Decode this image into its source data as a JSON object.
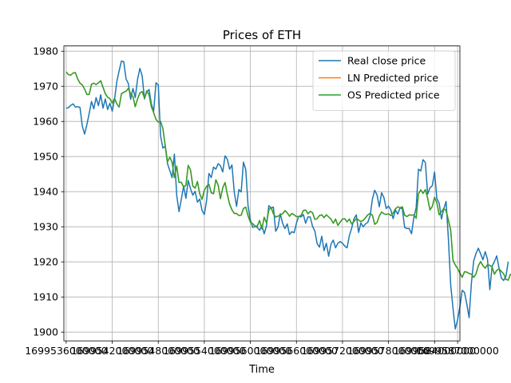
{
  "chart_data": {
    "type": "line",
    "title": "Prices of ETH",
    "xlabel": "Time",
    "ylabel": "",
    "grid": true,
    "legend_position": "top-right",
    "ylim": [
      1897.5,
      1981.5
    ],
    "yticks": [
      1900,
      1910,
      1920,
      1930,
      1940,
      1950,
      1960,
      1970,
      1980
    ],
    "xlim": [
      1699535700000,
      1699587300000
    ],
    "xticks": [
      1699536000000,
      1699542000000,
      1699548000000,
      1699554000000,
      1699560000000,
      1699566000000,
      1699572000000,
      1699578000000,
      1699584000000,
      1699587000000
    ],
    "xtick_labels": [
      "1699536000000",
      "1699542000000",
      "1699548000000",
      "1699554000000",
      "1699560000000",
      "1699566000000",
      "1699572000000",
      "1699578000000",
      "1699584000000",
      "1699587000000"
    ],
    "x_start": 1699536000000,
    "x_step": 300000,
    "series": [
      {
        "name": "Real close price",
        "color": "#1f77b4",
        "values": [
          1963.8,
          1963.9,
          1964.6,
          1965.0,
          1964.1,
          1964.2,
          1964.0,
          1958.7,
          1956.4,
          1959.1,
          1962.3,
          1965.7,
          1963.6,
          1966.8,
          1964.5,
          1967.6,
          1963.8,
          1966.4,
          1963.4,
          1965.2,
          1962.9,
          1966.3,
          1971.4,
          1974.4,
          1977.2,
          1977.0,
          1972.1,
          1970.8,
          1966.3,
          1969.4,
          1966.8,
          1972.0,
          1975.1,
          1973.0,
          1966.4,
          1968.5,
          1969.1,
          1965.0,
          1962.9,
          1971.0,
          1970.4,
          1955.9,
          1952.4,
          1953.0,
          1948.0,
          1946.0,
          1944.0,
          1950.7,
          1939.0,
          1934.3,
          1937.8,
          1941.6,
          1938.1,
          1943.2,
          1940.8,
          1939.0,
          1940.1,
          1937.0,
          1937.9,
          1934.7,
          1933.5,
          1937.5,
          1945.2,
          1944.0,
          1947.0,
          1946.4,
          1948.0,
          1947.4,
          1945.6,
          1950.2,
          1949.2,
          1946.4,
          1947.6,
          1939.9,
          1935.8,
          1940.6,
          1939.9,
          1948.4,
          1946.3,
          1935.9,
          1932.0,
          1929.8,
          1930.1,
          1929.8,
          1929.0,
          1930.3,
          1928.0,
          1930.3,
          1936.0,
          1935.4,
          1935.6,
          1928.7,
          1929.9,
          1933.7,
          1931.0,
          1929.5,
          1930.8,
          1927.8,
          1928.6,
          1928.3,
          1931.0,
          1933.0,
          1932.8,
          1933.5,
          1931.0,
          1932.8,
          1932.8,
          1930.1,
          1928.8,
          1925.2,
          1924.2,
          1927.3,
          1923.2,
          1925.3,
          1921.6,
          1925.0,
          1926.2,
          1924.0,
          1925.3,
          1925.8,
          1925.3,
          1924.5,
          1924.0,
          1927.5,
          1929.6,
          1932.3,
          1933.4,
          1928.4,
          1931.1,
          1930.0,
          1930.8,
          1931.3,
          1933.1,
          1937.9,
          1940.4,
          1939.1,
          1935.7,
          1939.7,
          1938.3,
          1935.2,
          1935.9,
          1934.8,
          1932.3,
          1934.8,
          1933.6,
          1935.4,
          1935.1,
          1929.8,
          1929.5,
          1929.5,
          1928.0,
          1932.7,
          1935.4,
          1946.4,
          1945.9,
          1949.1,
          1948.3,
          1939.3,
          1941.1,
          1941.7,
          1945.6,
          1938.0,
          1936.7,
          1932.2,
          1935.1,
          1937.2,
          1926.6,
          1913.4,
          1906.8,
          1900.9,
          1903.5,
          1907.2,
          1911.9,
          1911.3,
          1908.0,
          1904.1,
          1914.0,
          1920.3,
          1922.4,
          1923.9,
          1922.3,
          1920.6,
          1922.9,
          1920.7,
          1912.1,
          1918.8,
          1920.1,
          1921.7,
          1918.2,
          1915.4,
          1914.7,
          1915.9,
          1920.1
        ]
      },
      {
        "name": "LN Predicted price",
        "color": "#ff7f0e",
        "values": [
          1974.1,
          1973.3,
          1973.2,
          1973.8,
          1973.9,
          1972.1,
          1970.9,
          1970.4,
          1969.2,
          1967.7,
          1967.7,
          1970.6,
          1970.9,
          1970.5,
          1971.0,
          1971.6,
          1969.7,
          1967.9,
          1966.9,
          1966.5,
          1965.2,
          1966.6,
          1965.0,
          1964.1,
          1967.9,
          1968.3,
          1968.6,
          1969.4,
          1967.9,
          1967.1,
          1964.2,
          1966.4,
          1968.1,
          1968.5,
          1966.7,
          1968.7,
          1967.6,
          1964.2,
          1962.5,
          1960.6,
          1959.8,
          1960.0,
          1958.0,
          1953.2,
          1948.5,
          1949.8,
          1948.4,
          1944.0,
          1947.3,
          1942.6,
          1942.7,
          1941.3,
          1941.8,
          1947.5,
          1946.2,
          1941.6,
          1941.0,
          1942.9,
          1939.4,
          1937.8,
          1940.4,
          1941.5,
          1942.1,
          1939.7,
          1939.4,
          1943.4,
          1941.9,
          1938.0,
          1941.1,
          1942.6,
          1939.2,
          1936.4,
          1934.8,
          1933.8,
          1933.8,
          1933.2,
          1933.3,
          1935.2,
          1935.6,
          1933.1,
          1931.3,
          1930.9,
          1930.2,
          1930.2,
          1931.8,
          1929.4,
          1932.7,
          1931.1,
          1934.8,
          1935.5,
          1933.7,
          1932.8,
          1933.0,
          1933.4,
          1933.7,
          1934.6,
          1934.0,
          1933.0,
          1933.8,
          1933.4,
          1932.9,
          1932.9,
          1933.2,
          1934.6,
          1934.8,
          1933.7,
          1934.4,
          1934.0,
          1932.1,
          1932.3,
          1933.2,
          1933.4,
          1932.6,
          1933.4,
          1932.8,
          1932.2,
          1931.0,
          1932.2,
          1930.4,
          1931.3,
          1932.2,
          1932.3,
          1931.4,
          1932.2,
          1930.8,
          1931.5,
          1932.4,
          1931.9,
          1931.5,
          1931.8,
          1932.6,
          1933.4,
          1933.8,
          1933.3,
          1930.7,
          1931.2,
          1933.1,
          1934.2,
          1933.7,
          1933.5,
          1933.7,
          1933.2,
          1933.9,
          1935.1,
          1935.7,
          1935.4,
          1935.7,
          1933.3,
          1932.9,
          1933.4,
          1933.3,
          1933.4,
          1932.4,
          1939.4,
          1940.5,
          1939.5,
          1940.6,
          1938.1,
          1934.8,
          1935.8,
          1938.4,
          1936.8,
          1933.4,
          1934.3,
          1935.2,
          1934.6,
          1931.9,
          1929.0,
          1920.5,
          1919.1,
          1918.1,
          1916.8,
          1915.6,
          1917.2,
          1917.1,
          1916.7,
          1916.5,
          1915.6,
          1916.6,
          1918.9,
          1920.1,
          1918.9,
          1918.2,
          1919.2,
          1919.0,
          1918.5,
          1916.5,
          1917.6,
          1918.0,
          1917.3,
          1916.6,
          1915.0,
          1914.8,
          1916.6
        ]
      },
      {
        "name": "OS Predicted price",
        "color": "#2ca02c",
        "values": [
          1974.1,
          1973.3,
          1973.2,
          1973.8,
          1973.9,
          1972.1,
          1970.9,
          1970.4,
          1969.2,
          1967.7,
          1967.7,
          1970.6,
          1970.9,
          1970.5,
          1971.0,
          1971.6,
          1969.7,
          1967.9,
          1966.9,
          1966.5,
          1965.2,
          1966.6,
          1965.0,
          1964.1,
          1967.9,
          1968.3,
          1968.6,
          1969.4,
          1967.9,
          1967.1,
          1964.2,
          1966.4,
          1968.1,
          1968.5,
          1966.7,
          1968.7,
          1967.6,
          1964.2,
          1962.5,
          1960.6,
          1959.8,
          1960.0,
          1958.0,
          1953.2,
          1948.5,
          1949.8,
          1948.4,
          1944.0,
          1947.3,
          1942.6,
          1942.7,
          1941.3,
          1941.8,
          1947.5,
          1946.2,
          1941.6,
          1941.0,
          1942.9,
          1939.4,
          1937.8,
          1940.4,
          1941.5,
          1942.1,
          1939.7,
          1939.4,
          1943.4,
          1941.9,
          1938.0,
          1941.1,
          1942.6,
          1939.2,
          1936.4,
          1934.8,
          1933.8,
          1933.8,
          1933.2,
          1933.3,
          1935.2,
          1935.6,
          1933.1,
          1931.3,
          1930.9,
          1930.2,
          1930.2,
          1931.8,
          1929.4,
          1932.7,
          1931.1,
          1934.8,
          1935.5,
          1933.7,
          1932.8,
          1933.0,
          1933.4,
          1933.7,
          1934.6,
          1934.0,
          1933.0,
          1933.8,
          1933.4,
          1932.9,
          1932.9,
          1933.2,
          1934.6,
          1934.8,
          1933.7,
          1934.4,
          1934.0,
          1932.1,
          1932.3,
          1933.2,
          1933.4,
          1932.6,
          1933.4,
          1932.8,
          1932.2,
          1931.0,
          1932.2,
          1930.4,
          1931.3,
          1932.2,
          1932.3,
          1931.4,
          1932.2,
          1930.8,
          1931.5,
          1932.4,
          1931.9,
          1931.5,
          1931.8,
          1932.6,
          1933.4,
          1933.8,
          1933.3,
          1930.7,
          1931.2,
          1933.1,
          1934.2,
          1933.7,
          1933.5,
          1933.7,
          1933.2,
          1933.9,
          1935.1,
          1935.7,
          1935.4,
          1935.7,
          1933.3,
          1932.9,
          1933.4,
          1933.3,
          1933.4,
          1932.4,
          1939.4,
          1940.5,
          1939.5,
          1940.6,
          1938.1,
          1934.8,
          1935.8,
          1938.4,
          1936.8,
          1933.4,
          1934.3,
          1935.2,
          1934.6,
          1931.9,
          1929.0,
          1920.5,
          1919.1,
          1918.1,
          1916.8,
          1915.6,
          1917.2,
          1917.1,
          1916.7,
          1916.5,
          1915.6,
          1916.6,
          1918.9,
          1920.1,
          1918.9,
          1918.2,
          1919.2,
          1919.0,
          1918.5,
          1916.5,
          1917.6,
          1918.0,
          1917.3,
          1916.6,
          1915.0,
          1914.8,
          1916.6
        ]
      }
    ]
  }
}
